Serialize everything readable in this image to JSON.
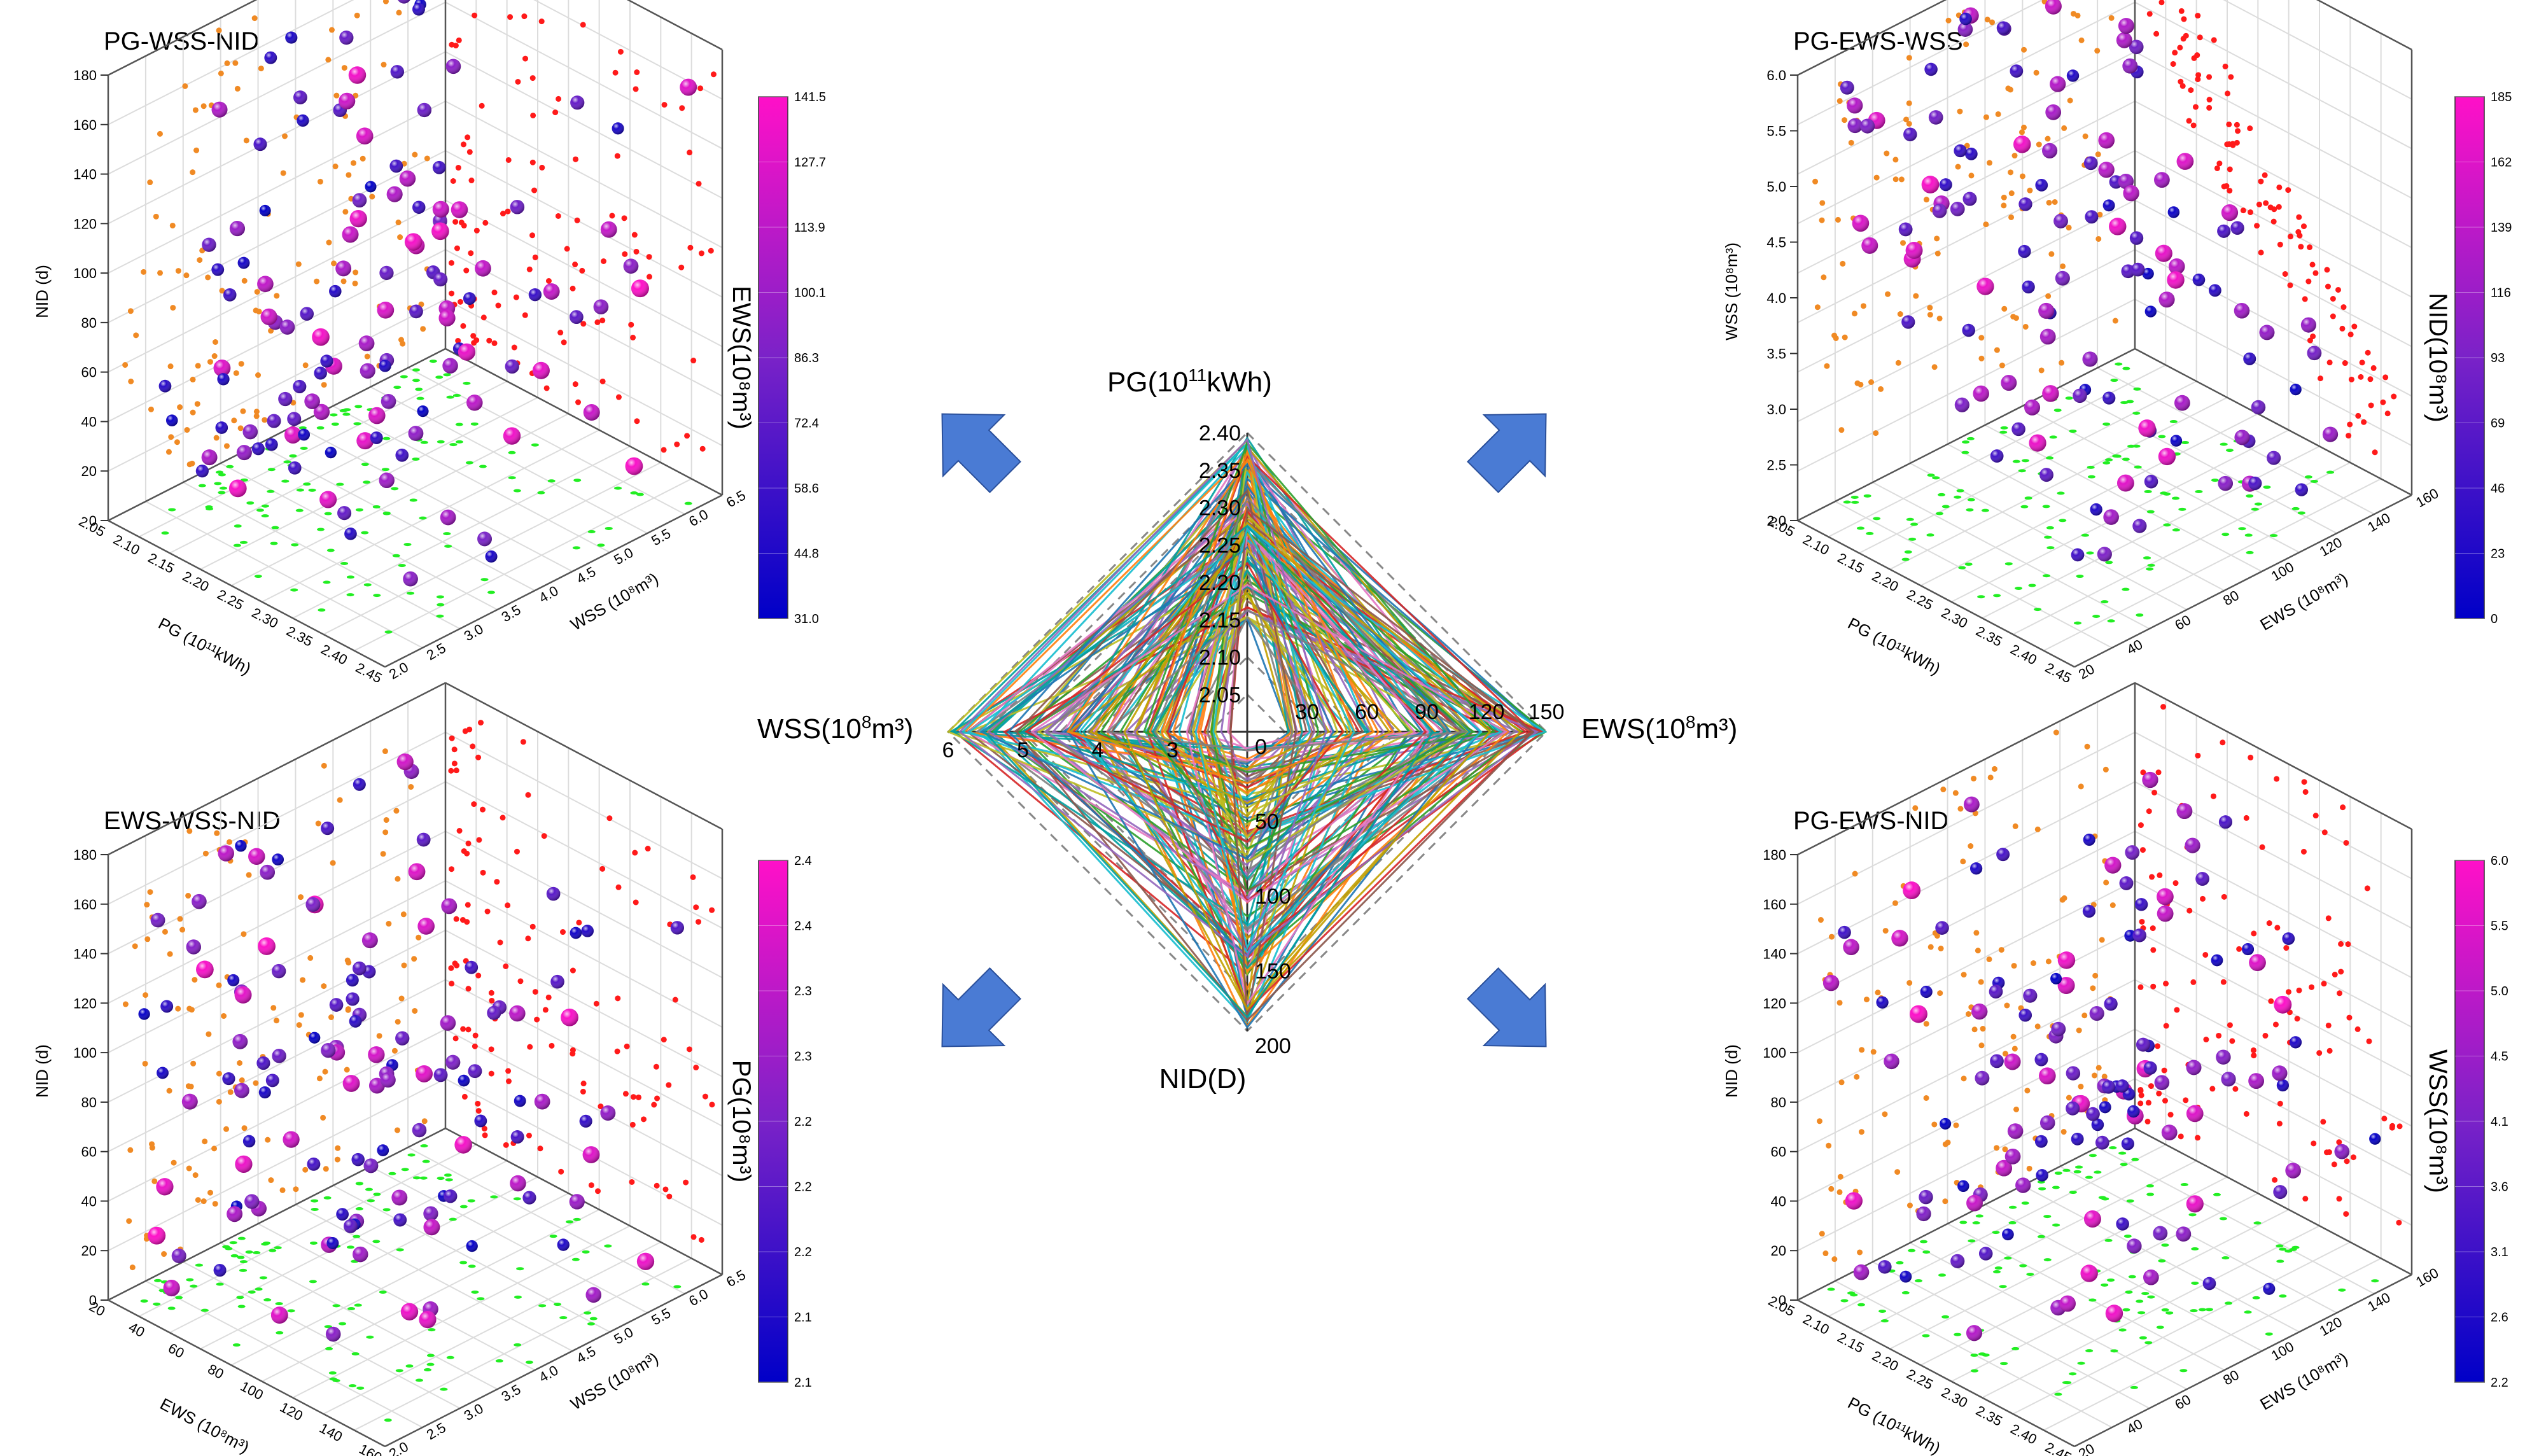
{
  "colors": {
    "side_x": "#f08a24",
    "side_y": "#ff1a1a",
    "floor": "#22ee22",
    "arrow": "#4a7bd4",
    "colorbar_low": "#0000c8",
    "colorbar_mid": "#7a22c8",
    "colorbar_high": "#ff10c8"
  },
  "arrows": [
    "arrow-up-left-icon",
    "arrow-up-right-icon",
    "arrow-down-left-icon",
    "arrow-down-right-icon"
  ],
  "chart_data": [
    {
      "type": "radar",
      "axes": [
        {
          "name": "PG(10",
          "sup": "11",
          "unit": "kWh)",
          "ticks": [
            "2.05",
            "2.10",
            "2.15",
            "2.20",
            "2.25",
            "2.30",
            "2.35",
            "2.40"
          ]
        },
        {
          "name": "EWS(10",
          "sup": "8",
          "unit": "m³)",
          "ticks": [
            "30",
            "60",
            "90",
            "120",
            "150"
          ]
        },
        {
          "name": "NID(D)",
          "sup": "",
          "unit": "",
          "ticks": [
            "0",
            "50",
            "100",
            "150",
            "200"
          ]
        },
        {
          "name": "WSS(10",
          "sup": "8",
          "unit": "m³)",
          "ticks": [
            "3",
            "4",
            "5",
            "6"
          ]
        }
      ],
      "ranges": {
        "pg": [
          2.0,
          2.4
        ],
        "ews": [
          0,
          150
        ],
        "nid": [
          0,
          200
        ],
        "wss": [
          2,
          6
        ]
      },
      "series_count": 120,
      "grid": "dashed"
    },
    {
      "type": "scatter3d",
      "title": "PG-WSS-NID",
      "x_label": "PG (10¹¹kWh)",
      "y_label": "WSS (10⁸m³)",
      "z_label": "NID (d)",
      "x_ticks": [
        "2.05",
        "2.10",
        "2.15",
        "2.20",
        "2.25",
        "2.30",
        "2.35",
        "2.40",
        "2.45"
      ],
      "y_ticks": [
        "2.0",
        "2.5",
        "3.0",
        "3.5",
        "4.0",
        "4.5",
        "5.0",
        "5.5",
        "6.0",
        "6.5"
      ],
      "z_ticks": [
        "0",
        "20",
        "40",
        "60",
        "80",
        "100",
        "120",
        "140",
        "160",
        "180"
      ],
      "colorbar_label": "EWS(10⁸m³)",
      "colorbar_ticks": [
        "31.0",
        "44.8",
        "58.6",
        "72.4",
        "86.3",
        "100.1",
        "113.9",
        "127.7",
        "141.5"
      ]
    },
    {
      "type": "scatter3d",
      "title": "PG-EWS-WSS",
      "x_label": "PG (10¹¹kWh)",
      "y_label": "EWS (10⁸m³)",
      "z_label": "WSS (10⁸m³)",
      "x_ticks": [
        "2.05",
        "2.10",
        "2.15",
        "2.20",
        "2.25",
        "2.30",
        "2.35",
        "2.40",
        "2.45"
      ],
      "y_ticks": [
        "20",
        "40",
        "60",
        "80",
        "100",
        "120",
        "140",
        "160"
      ],
      "z_ticks": [
        "2.0",
        "2.5",
        "3.0",
        "3.5",
        "4.0",
        "4.5",
        "5.0",
        "5.5",
        "6.0"
      ],
      "colorbar_label": "NID(10⁸m³)",
      "colorbar_ticks": [
        "0",
        "23",
        "46",
        "69",
        "93",
        "116",
        "139",
        "162",
        "185"
      ]
    },
    {
      "type": "scatter3d",
      "title": "EWS-WSS-NID",
      "x_label": "EWS (10⁸m³)",
      "y_label": "WSS (10⁸m³)",
      "z_label": "NID (d)",
      "x_ticks": [
        "20",
        "40",
        "60",
        "80",
        "100",
        "120",
        "140",
        "160"
      ],
      "y_ticks": [
        "2.0",
        "2.5",
        "3.0",
        "3.5",
        "4.0",
        "4.5",
        "5.0",
        "5.5",
        "6.0",
        "6.5"
      ],
      "z_ticks": [
        "0",
        "20",
        "40",
        "60",
        "80",
        "100",
        "120",
        "140",
        "160",
        "180"
      ],
      "colorbar_label": "PG(10⁸m³)",
      "colorbar_ticks": [
        "2.1",
        "2.1",
        "2.2",
        "2.2",
        "2.2",
        "2.3",
        "2.3",
        "2.4",
        "2.4"
      ]
    },
    {
      "type": "scatter3d",
      "title": "PG-EWS-NID",
      "x_label": "PG (10¹¹kWh)",
      "y_label": "EWS (10⁸m³)",
      "z_label": "NID (d)",
      "x_ticks": [
        "2.05",
        "2.10",
        "2.15",
        "2.20",
        "2.25",
        "2.30",
        "2.35",
        "2.40",
        "2.45"
      ],
      "y_ticks": [
        "20",
        "40",
        "60",
        "80",
        "100",
        "120",
        "140",
        "160"
      ],
      "z_ticks": [
        "0",
        "20",
        "40",
        "60",
        "80",
        "100",
        "120",
        "140",
        "160",
        "180"
      ],
      "colorbar_label": "WSS(10⁸m³)",
      "colorbar_ticks": [
        "2.2",
        "2.6",
        "3.1",
        "3.6",
        "4.1",
        "4.5",
        "5.0",
        "5.5",
        "6.0"
      ]
    }
  ]
}
